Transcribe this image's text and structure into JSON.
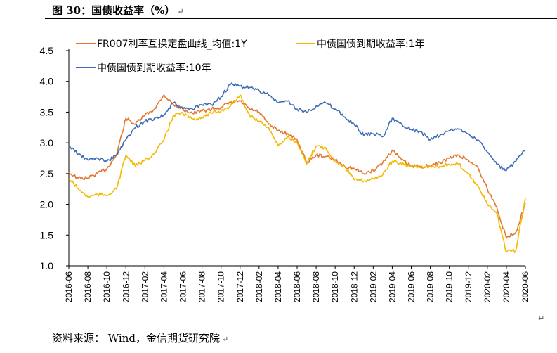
{
  "header": {
    "title": "图 30：国债收益率（%）",
    "para_mark": "↵"
  },
  "footer": {
    "source": "资料来源： Wind，金信期货研究院",
    "para_mark": "↵",
    "end_mark": "↵"
  },
  "colors": {
    "fr007": "#E3762E",
    "cgb_1y": "#F5B800",
    "cgb_10y": "#3E6DB5"
  },
  "chart_data": {
    "type": "line",
    "title": "",
    "xlabel": "",
    "ylabel": "",
    "ylim": [
      1.0,
      4.5
    ],
    "yticks": [
      "1.0",
      "1.5",
      "2.0",
      "2.5",
      "3.0",
      "3.5",
      "4.0",
      "4.5"
    ],
    "x_start": "2016-06",
    "x_end": "2020-06",
    "x_ticks": [
      "2016-06",
      "2016-08",
      "2016-10",
      "2016-12",
      "2017-02",
      "2017-04",
      "2017-06",
      "2017-08",
      "2017-10",
      "2017-12",
      "2018-02",
      "2018-04",
      "2018-06",
      "2018-08",
      "2018-10",
      "2018-12",
      "2019-02",
      "2019-04",
      "2019-06",
      "2019-08",
      "2019-10",
      "2019-12",
      "2020-02",
      "2020-04",
      "2020-06"
    ],
    "grid": false,
    "legend_position": "top",
    "series": [
      {
        "name": "FR007利率互换定盘曲线_均值:1Y",
        "color_key": "fr007",
        "points": [
          [
            "2016-06",
            2.52
          ],
          [
            "2016-07",
            2.42
          ],
          [
            "2016-08",
            2.43
          ],
          [
            "2016-09",
            2.5
          ],
          [
            "2016-10",
            2.58
          ],
          [
            "2016-11",
            2.8
          ],
          [
            "2016-12",
            3.4
          ],
          [
            "2017-01",
            3.3
          ],
          [
            "2017-02",
            3.45
          ],
          [
            "2017-03",
            3.55
          ],
          [
            "2017-04",
            3.78
          ],
          [
            "2017-05",
            3.62
          ],
          [
            "2017-06",
            3.55
          ],
          [
            "2017-07",
            3.48
          ],
          [
            "2017-08",
            3.52
          ],
          [
            "2017-09",
            3.55
          ],
          [
            "2017-10",
            3.58
          ],
          [
            "2017-11",
            3.65
          ],
          [
            "2017-12",
            3.68
          ],
          [
            "2018-01",
            3.55
          ],
          [
            "2018-02",
            3.5
          ],
          [
            "2018-03",
            3.3
          ],
          [
            "2018-04",
            3.2
          ],
          [
            "2018-05",
            3.15
          ],
          [
            "2018-06",
            3.05
          ],
          [
            "2018-07",
            2.68
          ],
          [
            "2018-08",
            2.8
          ],
          [
            "2018-09",
            2.78
          ],
          [
            "2018-10",
            2.72
          ],
          [
            "2018-11",
            2.62
          ],
          [
            "2018-12",
            2.58
          ],
          [
            "2019-01",
            2.5
          ],
          [
            "2019-02",
            2.55
          ],
          [
            "2019-03",
            2.68
          ],
          [
            "2019-04",
            2.88
          ],
          [
            "2019-05",
            2.72
          ],
          [
            "2019-06",
            2.62
          ],
          [
            "2019-07",
            2.62
          ],
          [
            "2019-08",
            2.62
          ],
          [
            "2019-09",
            2.68
          ],
          [
            "2019-10",
            2.75
          ],
          [
            "2019-11",
            2.8
          ],
          [
            "2019-12",
            2.72
          ],
          [
            "2020-01",
            2.6
          ],
          [
            "2020-02",
            2.25
          ],
          [
            "2020-03",
            1.95
          ],
          [
            "2020-04",
            1.45
          ],
          [
            "2020-05",
            1.55
          ],
          [
            "2020-06",
            2.02
          ]
        ]
      },
      {
        "name": "中债国债到期收益率:1年",
        "color_key": "cgb_1y",
        "points": [
          [
            "2016-06",
            2.42
          ],
          [
            "2016-07",
            2.25
          ],
          [
            "2016-08",
            2.12
          ],
          [
            "2016-09",
            2.16
          ],
          [
            "2016-10",
            2.15
          ],
          [
            "2016-11",
            2.25
          ],
          [
            "2016-12",
            2.8
          ],
          [
            "2017-01",
            2.62
          ],
          [
            "2017-02",
            2.72
          ],
          [
            "2017-03",
            2.82
          ],
          [
            "2017-04",
            3.05
          ],
          [
            "2017-05",
            3.45
          ],
          [
            "2017-06",
            3.48
          ],
          [
            "2017-07",
            3.38
          ],
          [
            "2017-08",
            3.42
          ],
          [
            "2017-09",
            3.48
          ],
          [
            "2017-10",
            3.52
          ],
          [
            "2017-11",
            3.6
          ],
          [
            "2017-12",
            3.78
          ],
          [
            "2018-01",
            3.45
          ],
          [
            "2018-02",
            3.35
          ],
          [
            "2018-03",
            3.25
          ],
          [
            "2018-04",
            2.95
          ],
          [
            "2018-05",
            3.1
          ],
          [
            "2018-06",
            3.0
          ],
          [
            "2018-07",
            2.65
          ],
          [
            "2018-08",
            2.95
          ],
          [
            "2018-09",
            2.92
          ],
          [
            "2018-10",
            2.7
          ],
          [
            "2018-11",
            2.62
          ],
          [
            "2018-12",
            2.4
          ],
          [
            "2019-01",
            2.38
          ],
          [
            "2019-02",
            2.42
          ],
          [
            "2019-03",
            2.48
          ],
          [
            "2019-04",
            2.7
          ],
          [
            "2019-05",
            2.65
          ],
          [
            "2019-06",
            2.62
          ],
          [
            "2019-07",
            2.6
          ],
          [
            "2019-08",
            2.62
          ],
          [
            "2019-09",
            2.62
          ],
          [
            "2019-10",
            2.65
          ],
          [
            "2019-11",
            2.65
          ],
          [
            "2019-12",
            2.5
          ],
          [
            "2020-01",
            2.3
          ],
          [
            "2020-02",
            2.0
          ],
          [
            "2020-03",
            1.85
          ],
          [
            "2020-04",
            1.22
          ],
          [
            "2020-05",
            1.25
          ],
          [
            "2020-06",
            2.1
          ]
        ]
      },
      {
        "name": "中债国债到期收益率:10年",
        "color_key": "cgb_10y",
        "points": [
          [
            "2016-06",
            2.95
          ],
          [
            "2016-07",
            2.82
          ],
          [
            "2016-08",
            2.72
          ],
          [
            "2016-09",
            2.75
          ],
          [
            "2016-10",
            2.7
          ],
          [
            "2016-11",
            2.8
          ],
          [
            "2016-12",
            3.05
          ],
          [
            "2017-01",
            3.25
          ],
          [
            "2017-02",
            3.35
          ],
          [
            "2017-03",
            3.4
          ],
          [
            "2017-04",
            3.45
          ],
          [
            "2017-05",
            3.65
          ],
          [
            "2017-06",
            3.55
          ],
          [
            "2017-07",
            3.55
          ],
          [
            "2017-08",
            3.62
          ],
          [
            "2017-09",
            3.62
          ],
          [
            "2017-10",
            3.75
          ],
          [
            "2017-11",
            3.95
          ],
          [
            "2017-12",
            3.92
          ],
          [
            "2018-01",
            3.9
          ],
          [
            "2018-02",
            3.85
          ],
          [
            "2018-03",
            3.78
          ],
          [
            "2018-04",
            3.65
          ],
          [
            "2018-05",
            3.68
          ],
          [
            "2018-06",
            3.55
          ],
          [
            "2018-07",
            3.5
          ],
          [
            "2018-08",
            3.6
          ],
          [
            "2018-09",
            3.65
          ],
          [
            "2018-10",
            3.55
          ],
          [
            "2018-11",
            3.42
          ],
          [
            "2018-12",
            3.3
          ],
          [
            "2019-01",
            3.12
          ],
          [
            "2019-02",
            3.15
          ],
          [
            "2019-03",
            3.1
          ],
          [
            "2019-04",
            3.4
          ],
          [
            "2019-05",
            3.3
          ],
          [
            "2019-06",
            3.22
          ],
          [
            "2019-07",
            3.18
          ],
          [
            "2019-08",
            3.05
          ],
          [
            "2019-09",
            3.12
          ],
          [
            "2019-10",
            3.2
          ],
          [
            "2019-11",
            3.22
          ],
          [
            "2019-12",
            3.15
          ],
          [
            "2020-01",
            3.05
          ],
          [
            "2020-02",
            2.85
          ],
          [
            "2020-03",
            2.65
          ],
          [
            "2020-04",
            2.55
          ],
          [
            "2020-05",
            2.7
          ],
          [
            "2020-06",
            2.88
          ]
        ]
      }
    ]
  }
}
